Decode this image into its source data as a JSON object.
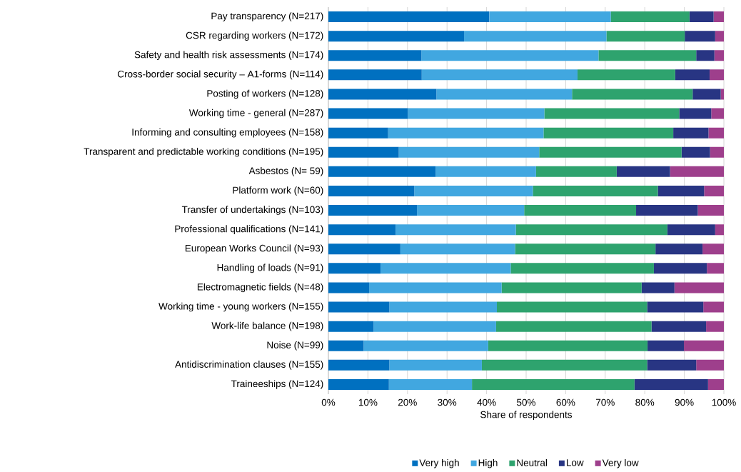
{
  "chart_data": {
    "type": "bar",
    "orientation": "horizontal",
    "stacked": true,
    "categories": [
      "Pay transparency (N=217)",
      "CSR regarding workers (N=172)",
      "Safety and health risk assessments (N=174)",
      "Cross-border social security – A1-forms (N=114)",
      "Posting of workers (N=128)",
      "Working time - general (N=287)",
      "Informing and consulting employees (N=158)",
      "Transparent and predictable working conditions (N=195)",
      "Asbestos (N= 59)",
      "Platform work (N=60)",
      "Transfer of undertakings (N=103)",
      "Professional qualifications (N=141)",
      "European Works Council (N=93)",
      "Handling of loads (N=91)",
      "Electromagnetic fields (N=48)",
      "Working time - young workers (N=155)",
      "Work-life balance (N=198)",
      "Noise (N=99)",
      "Antidiscrimination clauses (N=155)",
      "Traineeships (N=124)"
    ],
    "series": [
      {
        "name": "Very high",
        "color": "#0070c0",
        "values": [
          40.7,
          34.3,
          23.5,
          23.6,
          27.3,
          20.1,
          15.1,
          17.8,
          27.1,
          21.7,
          22.4,
          17.0,
          18.2,
          13.2,
          10.3,
          15.4,
          11.4,
          8.9,
          15.4,
          15.3
        ]
      },
      {
        "name": "High",
        "color": "#41a7e0",
        "values": [
          30.7,
          36.0,
          44.8,
          39.4,
          34.3,
          34.5,
          39.3,
          35.5,
          25.4,
          30.0,
          27.1,
          30.4,
          29.0,
          32.9,
          33.5,
          27.2,
          31.0,
          31.5,
          23.4,
          21.0
        ]
      },
      {
        "name": "Neutral",
        "color": "#2ea36e",
        "values": [
          19.9,
          19.8,
          24.7,
          24.7,
          30.5,
          34.1,
          32.8,
          36.0,
          20.4,
          31.6,
          28.3,
          38.3,
          35.5,
          36.2,
          35.4,
          38.0,
          39.3,
          40.3,
          41.8,
          41.1
        ]
      },
      {
        "name": "Low",
        "color": "#283583",
        "values": [
          6.1,
          7.7,
          4.6,
          8.7,
          7.1,
          8.1,
          8.9,
          7.2,
          13.5,
          11.7,
          15.6,
          12.1,
          11.9,
          13.4,
          8.3,
          14.2,
          13.8,
          9.2,
          12.4,
          18.6
        ]
      },
      {
        "name": "Very low",
        "color": "#9e3f8c",
        "values": [
          2.6,
          2.2,
          2.4,
          3.6,
          0.8,
          3.2,
          3.9,
          3.5,
          13.6,
          5.0,
          6.6,
          2.2,
          5.4,
          4.3,
          12.5,
          5.2,
          4.5,
          10.1,
          7.0,
          4.0
        ]
      }
    ],
    "xlim": [
      0,
      100
    ],
    "xticks": [
      {
        "value": 0,
        "label": "0%"
      },
      {
        "value": 10,
        "label": "10%"
      },
      {
        "value": 20,
        "label": "20%"
      },
      {
        "value": 30,
        "label": "30%"
      },
      {
        "value": 40,
        "label": "40%"
      },
      {
        "value": 50,
        "label": "50%"
      },
      {
        "value": 60,
        "label": "60%"
      },
      {
        "value": 70,
        "label": "70%"
      },
      {
        "value": 80,
        "label": "80%"
      },
      {
        "value": 90,
        "label": "90%"
      },
      {
        "value": 100,
        "label": "100%"
      }
    ],
    "xlabel": "Share of respondents",
    "grid": "x",
    "legend": "bottom"
  }
}
